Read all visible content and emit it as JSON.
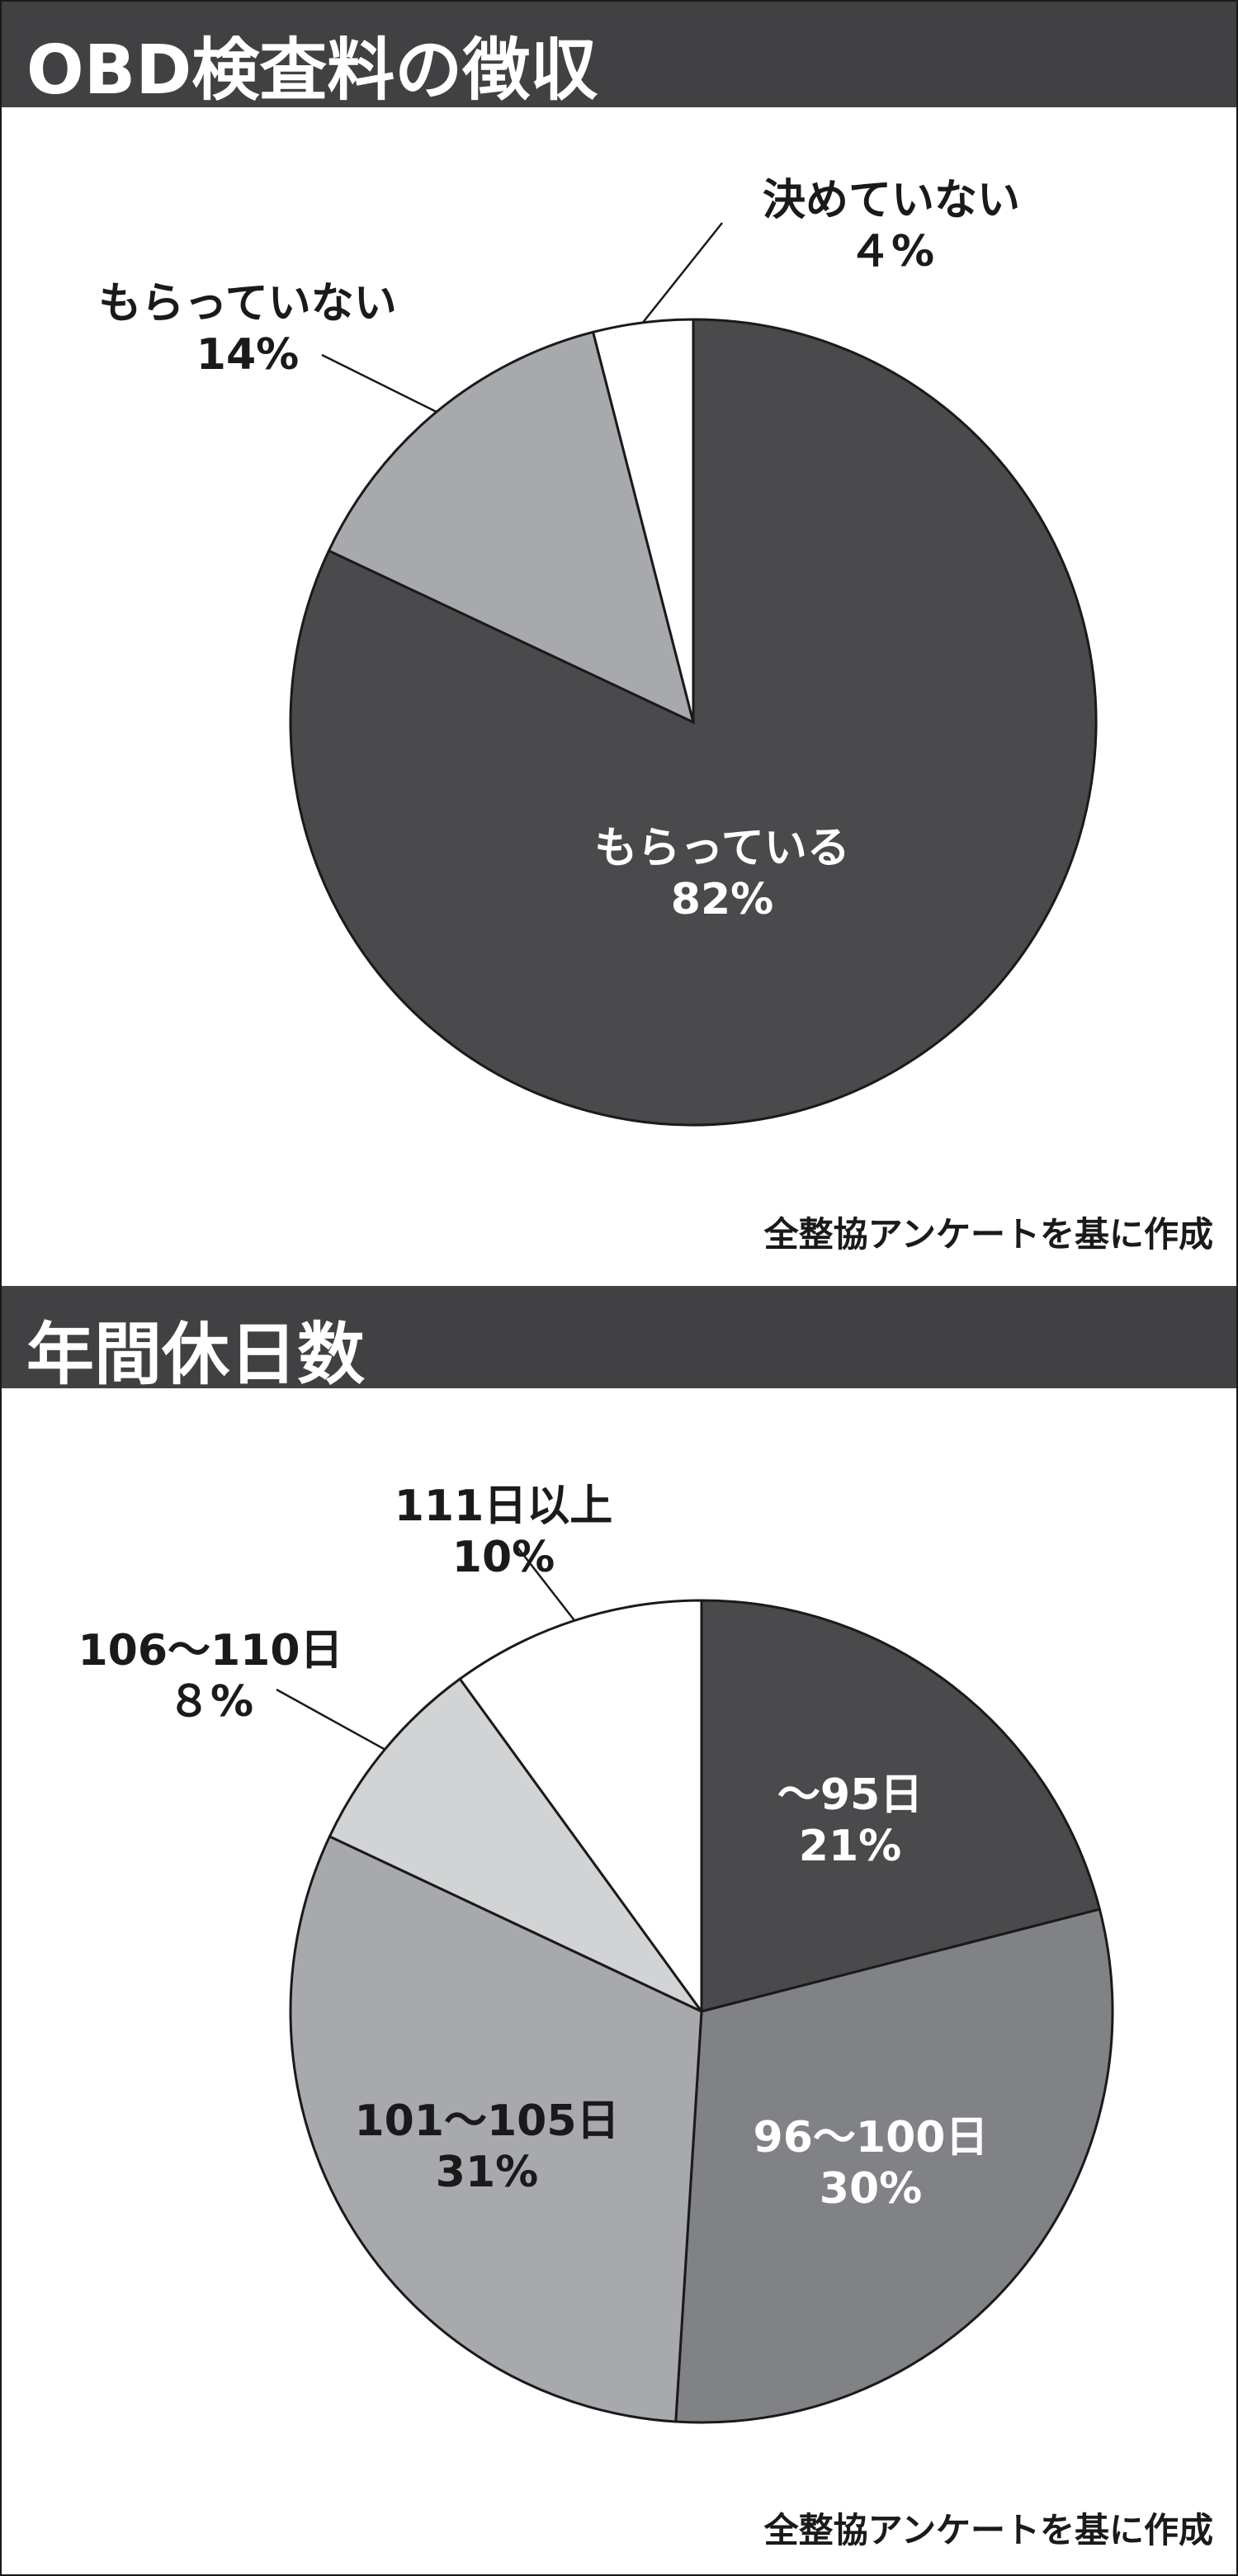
{
  "charts": [
    {
      "title": "OBD検査料の徴収",
      "source": "全整協アンケートを基に作成"
    },
    {
      "title": "年間休日数",
      "source": "全整協アンケートを基に作成"
    }
  ],
  "chart_data": [
    {
      "type": "pie",
      "title": "OBD検査料の徴収",
      "slices": [
        {
          "label": "もらっている",
          "value": 82,
          "display": "82%",
          "color": "#4a4a4c",
          "label_color": "#ffffff"
        },
        {
          "label": "もらっていない",
          "value": 14,
          "display": "14%",
          "color": "#a7a9ac",
          "label_color": "#1a1a1a"
        },
        {
          "label": "決めていない",
          "value": 4,
          "display": "４%",
          "color": "#ffffff",
          "label_color": "#1a1a1a"
        }
      ]
    },
    {
      "type": "pie",
      "title": "年間休日数",
      "slices": [
        {
          "label": "～95日",
          "value": 21,
          "display": "21%",
          "color": "#4a4a4c",
          "label_color": "#ffffff"
        },
        {
          "label": "96～100日",
          "value": 30,
          "display": "30%",
          "color": "#808285",
          "label_color": "#ffffff"
        },
        {
          "label": "101～105日",
          "value": 31,
          "display": "31%",
          "color": "#a7a9ac",
          "label_color": "#1a1a1a"
        },
        {
          "label": "106～110日",
          "value": 8,
          "display": "８%",
          "color": "#d1d3d4",
          "label_color": "#1a1a1a"
        },
        {
          "label": "111日以上",
          "value": 10,
          "display": "10%",
          "color": "#ffffff",
          "label_color": "#1a1a1a"
        }
      ]
    }
  ]
}
